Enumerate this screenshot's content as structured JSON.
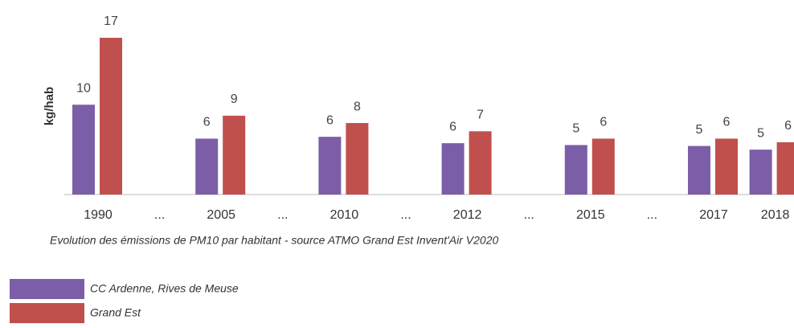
{
  "chart_data": {
    "type": "bar",
    "y_label": "kg/hab",
    "caption": "Evolution des émissions de PM10 par habitant - source ATMO Grand Est Invent'Air V2020",
    "categories": [
      "1990",
      "...",
      "2005",
      "...",
      "2010",
      "...",
      "2012",
      "...",
      "2015",
      "...",
      "2017",
      "2018"
    ],
    "series": [
      {
        "name": "CC Ardenne, Rives de Meuse",
        "color": "#7b5ea7",
        "values": [
          9.8,
          null,
          6.1,
          null,
          6.3,
          null,
          5.6,
          null,
          5.4,
          null,
          5.3,
          4.9
        ],
        "value_labels": [
          "10",
          null,
          "6",
          null,
          "6",
          null,
          "6",
          null,
          "5",
          null,
          "5",
          "5"
        ]
      },
      {
        "name": "Grand Est",
        "color": "#c0504d",
        "values": [
          17.1,
          null,
          8.6,
          null,
          7.8,
          null,
          6.9,
          null,
          6.1,
          null,
          6.1,
          5.7
        ],
        "value_labels": [
          "17",
          null,
          "9",
          null,
          "8",
          null,
          "7",
          null,
          "6",
          null,
          "6",
          "6"
        ]
      }
    ]
  }
}
